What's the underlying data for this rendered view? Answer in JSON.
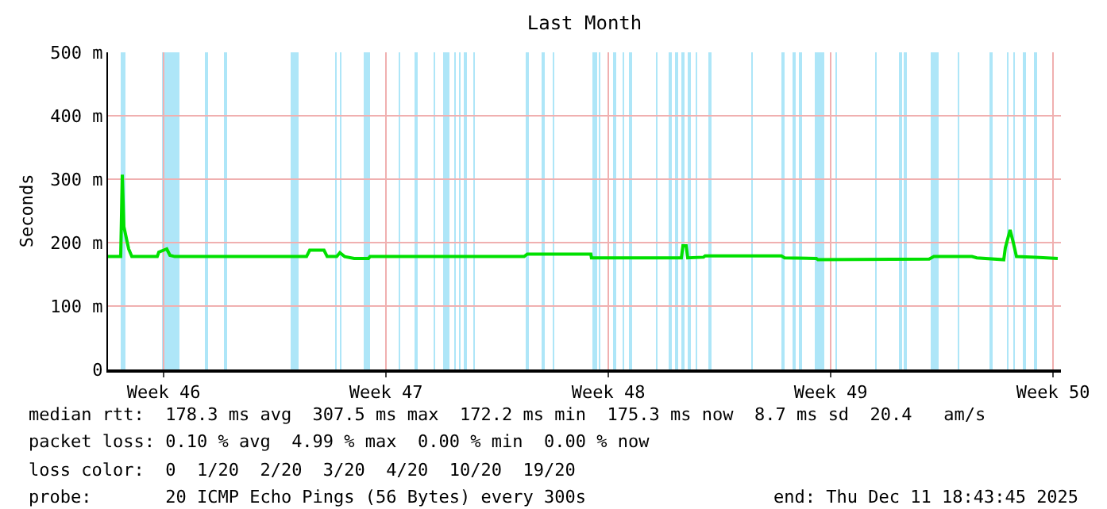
{
  "chart_data": {
    "type": "line",
    "title": "Last Month",
    "ylabel": "Seconds",
    "xlim": [
      "2025-11-11T18:00",
      "2025-12-11T18:00"
    ],
    "xticks": [
      {
        "value": "2025-11-13T12:00",
        "label": "Week 46"
      },
      {
        "value": "2025-11-20T12:00",
        "label": "Week 47"
      },
      {
        "value": "2025-11-27T12:00",
        "label": "Week 48"
      },
      {
        "value": "2025-12-04T12:00",
        "label": "Week 49"
      },
      {
        "value": "2025-12-11T12:00",
        "label": "Week 50"
      }
    ],
    "ylim": [
      0,
      500
    ],
    "yticks": [
      0,
      {
        "value": 100,
        "label": "100 m"
      },
      {
        "value": 200,
        "label": "200 m"
      },
      {
        "value": 300,
        "label": "300 m"
      },
      {
        "value": 400,
        "label": "400 m"
      },
      {
        "value": 500,
        "label": "500 m"
      }
    ],
    "grid": true,
    "marker": "none",
    "line_style": "solid",
    "x": [
      "2025-11-11T18:00",
      "2025-11-12T03:36",
      "2025-11-12T04:48",
      "2025-11-12T06:00",
      "2025-11-12T09:36",
      "2025-11-12T12:00",
      "2025-11-13T07:12",
      "2025-11-13T08:24",
      "2025-11-13T14:24",
      "2025-11-13T16:48",
      "2025-11-13T20:24",
      "2025-11-18T00:00",
      "2025-11-18T02:24",
      "2025-11-18T13:12",
      "2025-11-18T15:36",
      "2025-11-18T22:48",
      "2025-11-19T01:12",
      "2025-11-19T04:48",
      "2025-11-19T12:00",
      "2025-11-19T22:48",
      "2025-11-20T00:00",
      "2025-11-24T20:24",
      "2025-11-24T22:48",
      "2025-11-26T22:48",
      "2025-11-26T23:17",
      "2025-11-29T10:48",
      "2025-11-29T19:12",
      "2025-11-29T20:24",
      "2025-11-29T22:48",
      "2025-11-30T00:00",
      "2025-11-30T12:00",
      "2025-11-30T13:12",
      "2025-12-02T22:48",
      "2025-12-03T01:12",
      "2025-12-04T01:12",
      "2025-12-04T02:24",
      "2025-12-07T14:24",
      "2025-12-07T18:00",
      "2025-12-08T22:48",
      "2025-12-09T02:24",
      "2025-12-09T22:48",
      "2025-12-10T00:00",
      "2025-12-10T03:36",
      "2025-12-10T06:00",
      "2025-12-10T08:24",
      "2025-12-10T22:48",
      "2025-12-11T15:36"
    ],
    "series": [
      {
        "color": "#00e000",
        "values": [
          178,
          178,
          307,
          225,
          190,
          178,
          178,
          185,
          190,
          180,
          178,
          178,
          188,
          188,
          178,
          178,
          184,
          178,
          175,
          175,
          178,
          178,
          182,
          182,
          176,
          176,
          176,
          195,
          195,
          176,
          177,
          179,
          179,
          176,
          175,
          173,
          174,
          178,
          178,
          176,
          173,
          192,
          220,
          200,
          178,
          177,
          175
        ]
      }
    ],
    "bands": [
      {
        "axis": "x",
        "from": "2025-11-12T03:36",
        "to": "2025-11-12T07:12",
        "color": "#aee6f8"
      },
      {
        "axis": "x",
        "from": "2025-11-13T10:48",
        "to": "2025-11-14T00:00",
        "color": "#aee6f8"
      },
      {
        "axis": "x",
        "from": "2025-11-14T19:12",
        "to": "2025-11-14T21:36",
        "color": "#aee6f8"
      },
      {
        "axis": "x",
        "from": "2025-11-15T09:36",
        "to": "2025-11-15T12:00",
        "color": "#aee6f8"
      },
      {
        "axis": "x",
        "from": "2025-11-17T12:00",
        "to": "2025-11-17T18:00",
        "color": "#aee6f8"
      },
      {
        "axis": "x",
        "from": "2025-11-18T21:36",
        "to": "2025-11-18T22:48",
        "color": "#aee6f8"
      },
      {
        "axis": "x",
        "from": "2025-11-19T01:12",
        "to": "2025-11-19T02:24",
        "color": "#aee6f8"
      },
      {
        "axis": "x",
        "from": "2025-11-19T19:12",
        "to": "2025-11-20T00:00",
        "color": "#aee6f8"
      },
      {
        "axis": "x",
        "from": "2025-11-20T21:36",
        "to": "2025-11-20T22:48",
        "color": "#aee6f8"
      },
      {
        "axis": "x",
        "from": "2025-11-21T09:36",
        "to": "2025-11-21T12:00",
        "color": "#aee6f8"
      },
      {
        "axis": "x",
        "from": "2025-11-22T00:00",
        "to": "2025-11-22T01:12",
        "color": "#aee6f8"
      },
      {
        "axis": "x",
        "from": "2025-11-22T07:12",
        "to": "2025-11-22T12:00",
        "color": "#aee6f8"
      },
      {
        "axis": "x",
        "from": "2025-11-22T15:36",
        "to": "2025-11-22T16:48",
        "color": "#aee6f8"
      },
      {
        "axis": "x",
        "from": "2025-11-22T19:12",
        "to": "2025-11-22T20:24",
        "color": "#aee6f8"
      },
      {
        "axis": "x",
        "from": "2025-11-22T22:48",
        "to": "2025-11-23T01:12",
        "color": "#aee6f8"
      },
      {
        "axis": "x",
        "from": "2025-11-23T06:00",
        "to": "2025-11-23T07:12",
        "color": "#aee6f8"
      },
      {
        "axis": "x",
        "from": "2025-11-24T21:36",
        "to": "2025-11-25T00:00",
        "color": "#aee6f8"
      },
      {
        "axis": "x",
        "from": "2025-11-25T09:36",
        "to": "2025-11-25T12:00",
        "color": "#aee6f8"
      },
      {
        "axis": "x",
        "from": "2025-11-25T18:00",
        "to": "2025-11-25T19:12",
        "color": "#aee6f8"
      },
      {
        "axis": "x",
        "from": "2025-11-27T00:00",
        "to": "2025-11-27T03:36",
        "color": "#aee6f8"
      },
      {
        "axis": "x",
        "from": "2025-11-27T04:48",
        "to": "2025-11-27T06:00",
        "color": "#aee6f8"
      },
      {
        "axis": "x",
        "from": "2025-11-27T15:36",
        "to": "2025-11-27T18:00",
        "color": "#aee6f8"
      },
      {
        "axis": "x",
        "from": "2025-11-27T22:48",
        "to": "2025-11-28T00:00",
        "color": "#aee6f8"
      },
      {
        "axis": "x",
        "from": "2025-11-28T03:36",
        "to": "2025-11-28T06:00",
        "color": "#aee6f8"
      },
      {
        "axis": "x",
        "from": "2025-11-29T00:00",
        "to": "2025-11-29T01:12",
        "color": "#aee6f8"
      },
      {
        "axis": "x",
        "from": "2025-11-29T09:36",
        "to": "2025-11-29T12:00",
        "color": "#aee6f8"
      },
      {
        "axis": "x",
        "from": "2025-11-29T14:24",
        "to": "2025-11-29T16:48",
        "color": "#aee6f8"
      },
      {
        "axis": "x",
        "from": "2025-11-29T19:12",
        "to": "2025-11-29T21:36",
        "color": "#aee6f8"
      },
      {
        "axis": "x",
        "from": "2025-11-30T00:00",
        "to": "2025-11-30T02:24",
        "color": "#aee6f8"
      },
      {
        "axis": "x",
        "from": "2025-11-30T06:00",
        "to": "2025-11-30T07:12",
        "color": "#aee6f8"
      },
      {
        "axis": "x",
        "from": "2025-11-30T15:36",
        "to": "2025-11-30T18:00",
        "color": "#aee6f8"
      },
      {
        "axis": "x",
        "from": "2025-12-02T00:00",
        "to": "2025-12-02T01:12",
        "color": "#aee6f8"
      },
      {
        "axis": "x",
        "from": "2025-12-02T22:48",
        "to": "2025-12-03T01:12",
        "color": "#aee6f8"
      },
      {
        "axis": "x",
        "from": "2025-12-03T07:12",
        "to": "2025-12-03T09:36",
        "color": "#aee6f8"
      },
      {
        "axis": "x",
        "from": "2025-12-03T12:00",
        "to": "2025-12-03T14:24",
        "color": "#aee6f8"
      },
      {
        "axis": "x",
        "from": "2025-12-04T00:00",
        "to": "2025-12-04T07:12",
        "color": "#aee6f8"
      },
      {
        "axis": "x",
        "from": "2025-12-04T15:36",
        "to": "2025-12-04T16:48",
        "color": "#aee6f8"
      },
      {
        "axis": "x",
        "from": "2025-12-05T21:36",
        "to": "2025-12-05T22:48",
        "color": "#aee6f8"
      },
      {
        "axis": "x",
        "from": "2025-12-06T15:36",
        "to": "2025-12-06T18:00",
        "color": "#aee6f8"
      },
      {
        "axis": "x",
        "from": "2025-12-06T19:12",
        "to": "2025-12-06T21:36",
        "color": "#aee6f8"
      },
      {
        "axis": "x",
        "from": "2025-12-07T15:36",
        "to": "2025-12-07T21:36",
        "color": "#aee6f8"
      },
      {
        "axis": "x",
        "from": "2025-12-08T12:00",
        "to": "2025-12-08T13:12",
        "color": "#aee6f8"
      },
      {
        "axis": "x",
        "from": "2025-12-09T12:00",
        "to": "2025-12-09T14:24",
        "color": "#aee6f8"
      },
      {
        "axis": "x",
        "from": "2025-12-10T01:12",
        "to": "2025-12-10T02:24",
        "color": "#aee6f8"
      },
      {
        "axis": "x",
        "from": "2025-12-10T06:00",
        "to": "2025-12-10T07:12",
        "color": "#aee6f8"
      },
      {
        "axis": "x",
        "from": "2025-12-10T13:12",
        "to": "2025-12-10T15:36",
        "color": "#aee6f8"
      },
      {
        "axis": "x",
        "from": "2025-12-10T21:36",
        "to": "2025-12-11T00:00",
        "color": "#aee6f8"
      }
    ],
    "annotations": [
      "median rtt:  178.3 ms avg  307.5 ms max  172.2 ms min  175.3 ms now  8.7 ms sd  20.4   am/s",
      "packet loss: 0.10 % avg  4.99 % max  0.00 % min  0.00 % now",
      "loss color:  0  1/20  2/20  3/20  4/20  10/20  19/20",
      "probe:       20 ICMP Echo Pings (56 Bytes) every 300s",
      "end: Thu Dec 11 18:43:45 2025"
    ]
  }
}
